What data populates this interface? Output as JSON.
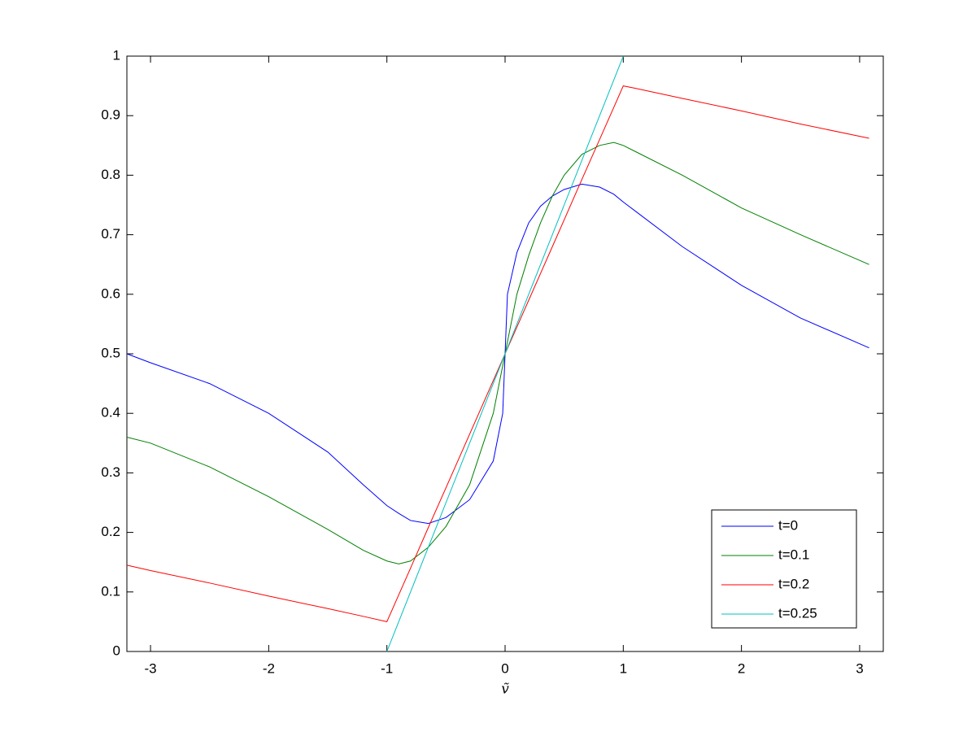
{
  "chart_data": {
    "type": "line",
    "x_label": "ṽ",
    "x": [
      -3.2,
      -3,
      -2.5,
      -2,
      -1.5,
      -1.2,
      -1,
      -0.9,
      -0.8,
      -0.65,
      -0.5,
      -0.3,
      -0.1,
      -0.02,
      0,
      0.02,
      0.1,
      0.2,
      0.3,
      0.4,
      0.5,
      0.65,
      0.8,
      0.92,
      1,
      1.1,
      1.5,
      2,
      2.5,
      3.08
    ],
    "series": [
      {
        "name": "t=0",
        "color": "#0000ff",
        "values": [
          0.5,
          0.485,
          0.45,
          0.4,
          0.335,
          0.28,
          0.245,
          0.232,
          0.22,
          0.215,
          0.225,
          0.255,
          0.32,
          0.4,
          0.5,
          0.6,
          0.67,
          0.72,
          0.748,
          0.765,
          0.776,
          0.785,
          0.78,
          0.768,
          0.755,
          0.74,
          0.68,
          0.615,
          0.56,
          0.51
        ]
      },
      {
        "name": "t=0.1",
        "color": "#008000",
        "values": [
          0.36,
          0.35,
          0.31,
          0.26,
          0.205,
          0.17,
          0.152,
          0.147,
          0.152,
          0.175,
          0.21,
          0.28,
          0.4,
          0.48,
          0.5,
          0.52,
          0.6,
          0.665,
          0.72,
          0.765,
          0.8,
          0.835,
          0.85,
          0.855,
          0.85,
          0.84,
          0.8,
          0.745,
          0.7,
          0.65
        ]
      },
      {
        "name": "t=0.2",
        "color": "#ff0000",
        "values": [
          0.145,
          0.136,
          0.115,
          0.093,
          0.072,
          0.059,
          0.05,
          0.095,
          0.14,
          0.208,
          0.275,
          0.365,
          0.455,
          0.491,
          0.5,
          0.509,
          0.545,
          0.59,
          0.635,
          0.68,
          0.725,
          0.793,
          0.86,
          0.914,
          0.95,
          0.946,
          0.929,
          0.908,
          0.886,
          0.862
        ]
      },
      {
        "name": "t=0.25",
        "color": "#00bfbf",
        "values": [
          null,
          null,
          null,
          null,
          null,
          null,
          0,
          0.05,
          0.1,
          0.175,
          0.25,
          0.35,
          0.45,
          0.49,
          0.5,
          0.51,
          0.55,
          0.6,
          0.65,
          0.7,
          0.75,
          0.825,
          0.9,
          0.96,
          1,
          null,
          null,
          null,
          null,
          null
        ]
      }
    ],
    "xlim": [
      -3.2,
      3.2
    ],
    "xticks": [
      -3,
      -2,
      -1,
      0,
      1,
      2,
      3
    ],
    "ylim": [
      0,
      1
    ],
    "yticks": [
      0,
      0.1,
      0.2,
      0.3,
      0.4,
      0.5,
      0.6,
      0.7,
      0.8,
      0.9,
      1
    ],
    "grid": false,
    "legend": "lower right"
  }
}
